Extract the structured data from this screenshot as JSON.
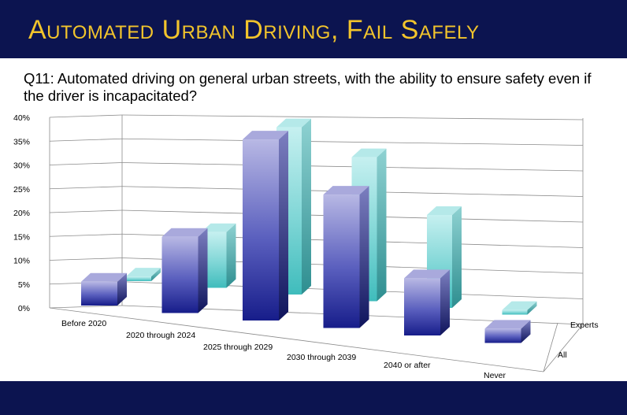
{
  "slide": {
    "title": "Automated Urban Driving, Fail Safely",
    "question": "Q11: Automated driving on general urban streets, with the ability to ensure safety even if the driver is incapacitated?"
  },
  "chart_data": {
    "type": "bar",
    "title": "",
    "categories": [
      "Before 2020",
      "2020 through 2024",
      "2025 through 2029",
      "2030 through 2039",
      "2040 or after",
      "Never"
    ],
    "series": [
      {
        "name": "All",
        "values": [
          5,
          16,
          38,
          28,
          12,
          3
        ],
        "color": "#3a3fa8"
      },
      {
        "name": "Experts",
        "values": [
          1,
          12,
          36,
          31,
          20,
          1
        ],
        "color": "#3fbfc0"
      }
    ],
    "ylim": [
      0,
      40
    ],
    "yticks": [
      "0%",
      "5%",
      "10%",
      "15%",
      "20%",
      "25%",
      "30%",
      "35%",
      "40%"
    ],
    "grid": true
  }
}
